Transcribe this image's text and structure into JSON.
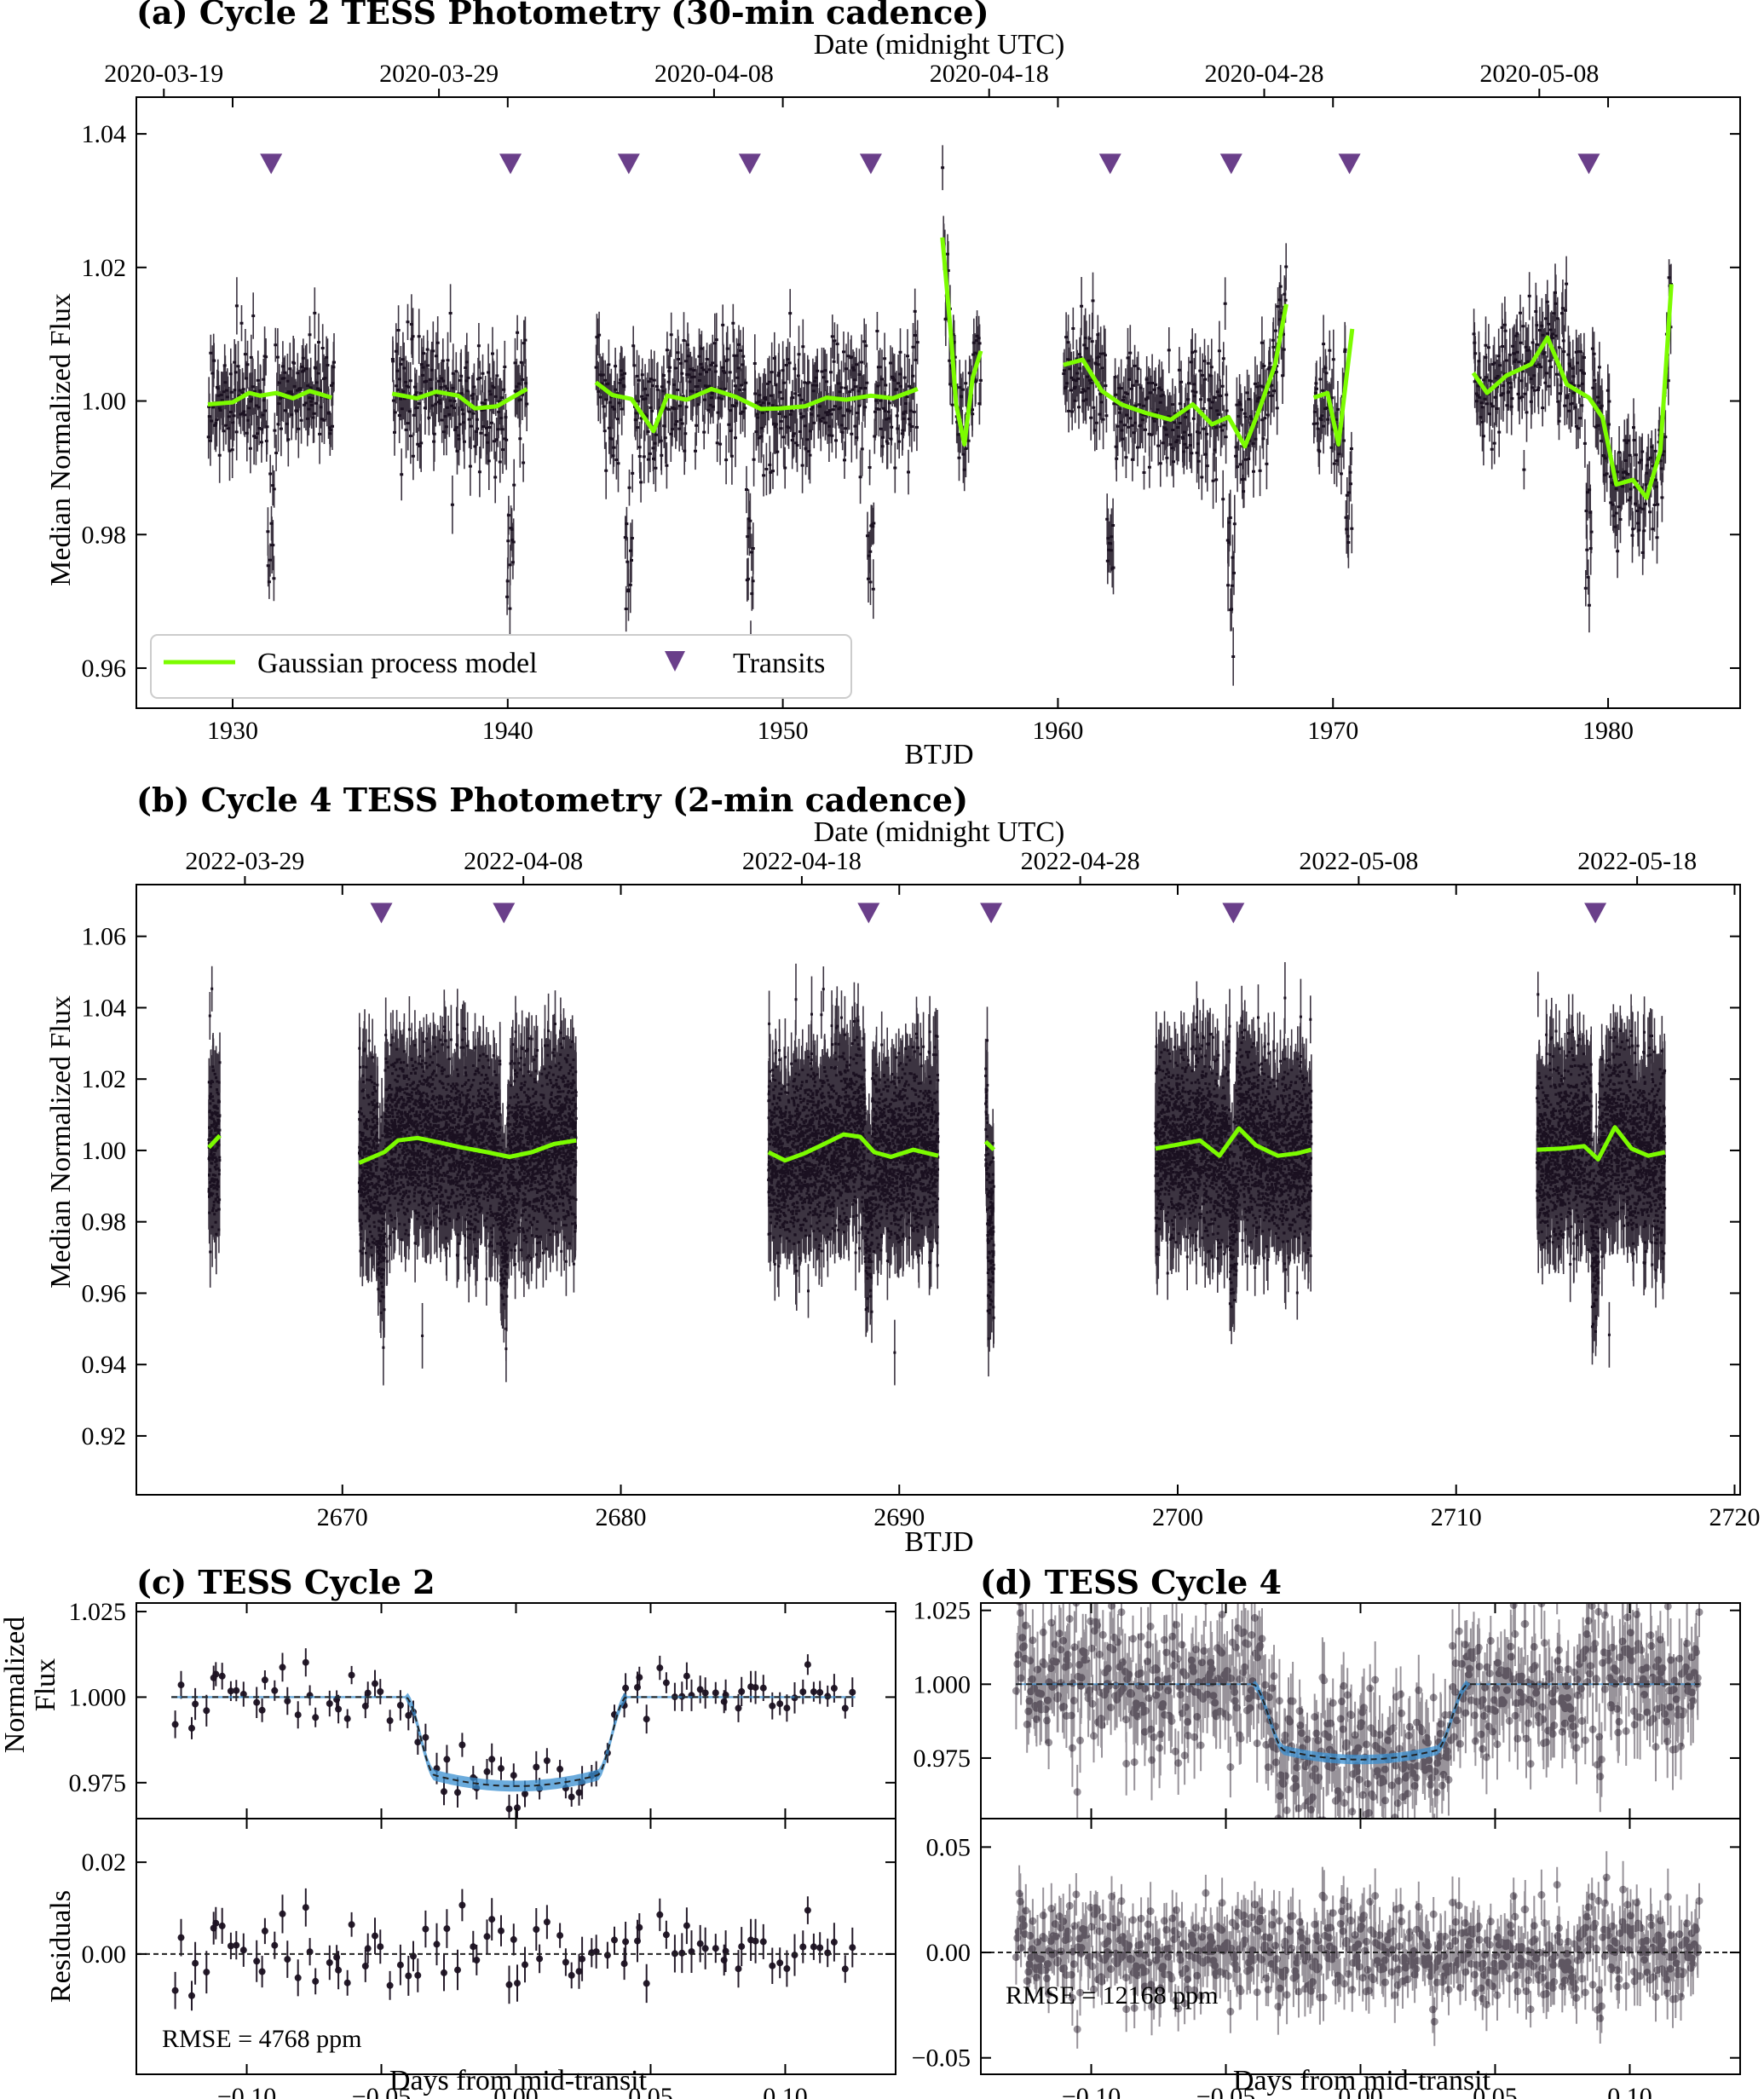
{
  "chart_data": [
    {
      "id": "a",
      "type": "scatter",
      "title": "(a) Cycle 2 TESS Photometry (30-min cadence)",
      "xlabel": "BTJD",
      "ylabel": "Median Normalized Flux",
      "top_xlabel": "Date (midnight UTC)",
      "xlim": [
        1926.5,
        1984.8
      ],
      "ylim": [
        0.954,
        1.0455
      ],
      "xticks": [
        1930,
        1940,
        1950,
        1960,
        1970,
        1980
      ],
      "xtick_labels": [
        "1930",
        "1940",
        "1950",
        "1960",
        "1970",
        "1980"
      ],
      "yticks": [
        0.96,
        0.98,
        1.0,
        1.02,
        1.04
      ],
      "ytick_labels": [
        "0.96",
        "0.98",
        "1.00",
        "1.02",
        "1.04"
      ],
      "top_ticks": [
        1927.5,
        1937.5,
        1947.5,
        1957.5,
        1967.5,
        1977.5
      ],
      "top_tick_labels": [
        "2020-03-19",
        "2020-03-29",
        "2020-04-08",
        "2020-04-18",
        "2020-04-28",
        "2020-05-08"
      ],
      "segments": [
        [
          1929.1,
          1933.7
        ],
        [
          1935.8,
          1940.7
        ],
        [
          1943.2,
          1954.9
        ],
        [
          1955.8,
          1957.2
        ],
        [
          1960.2,
          1968.3
        ],
        [
          1969.3,
          1970.7
        ],
        [
          1975.1,
          1982.3
        ]
      ],
      "noise": 0.0045,
      "transits": [
        1931.4,
        1940.1,
        1944.4,
        1948.8,
        1953.2,
        1961.9,
        1966.3,
        1970.6,
        1979.3
      ],
      "transit_marker_y": 1.0355,
      "gp_model": [
        [
          1929.1,
          0.9995
        ],
        [
          1930.0,
          0.9998
        ],
        [
          1930.6,
          1.0012
        ],
        [
          1931.0,
          1.0008
        ],
        [
          1931.6,
          1.0012
        ],
        [
          1932.2,
          1.0004
        ],
        [
          1932.8,
          1.0015
        ],
        [
          1933.6,
          1.0005
        ],
        [
          1935.8,
          1.0011
        ],
        [
          1936.7,
          1.0004
        ],
        [
          1937.4,
          1.0014
        ],
        [
          1938.2,
          1.0008
        ],
        [
          1938.8,
          0.9989
        ],
        [
          1939.6,
          0.9992
        ],
        [
          1940.7,
          1.0018
        ],
        [
          1943.2,
          1.0028
        ],
        [
          1943.8,
          1.0009
        ],
        [
          1944.5,
          1.0003
        ],
        [
          1945.3,
          0.9955
        ],
        [
          1945.8,
          1.0008
        ],
        [
          1946.5,
          1.0002
        ],
        [
          1947.4,
          1.0018
        ],
        [
          1948.3,
          1.0006
        ],
        [
          1949.2,
          0.9988
        ],
        [
          1949.9,
          0.9989
        ],
        [
          1950.8,
          0.9992
        ],
        [
          1951.6,
          1.0005
        ],
        [
          1952.3,
          1.0002
        ],
        [
          1953.2,
          1.0008
        ],
        [
          1954.0,
          1.0004
        ],
        [
          1954.9,
          1.0018
        ],
        [
          1955.8,
          1.0245
        ],
        [
          1956.1,
          1.0105
        ],
        [
          1956.3,
          0.9995
        ],
        [
          1956.6,
          0.9935
        ],
        [
          1956.9,
          1.0035
        ],
        [
          1957.2,
          1.0075
        ],
        [
          1960.2,
          1.0054
        ],
        [
          1960.9,
          1.0062
        ],
        [
          1961.6,
          1.0015
        ],
        [
          1962.3,
          0.9995
        ],
        [
          1963.2,
          0.9982
        ],
        [
          1964.1,
          0.9972
        ],
        [
          1964.9,
          0.9995
        ],
        [
          1965.6,
          0.9965
        ],
        [
          1966.2,
          0.9976
        ],
        [
          1966.8,
          0.9932
        ],
        [
          1967.3,
          0.9985
        ],
        [
          1967.9,
          1.0055
        ],
        [
          1968.3,
          1.0145
        ],
        [
          1969.3,
          1.0005
        ],
        [
          1969.8,
          1.0012
        ],
        [
          1970.2,
          0.9935
        ],
        [
          1970.7,
          1.0108
        ],
        [
          1975.1,
          1.0042
        ],
        [
          1975.6,
          1.0012
        ],
        [
          1976.3,
          1.0038
        ],
        [
          1977.2,
          1.0055
        ],
        [
          1977.8,
          1.0095
        ],
        [
          1978.5,
          1.0025
        ],
        [
          1979.3,
          1.0005
        ],
        [
          1979.8,
          0.9975
        ],
        [
          1980.3,
          0.9875
        ],
        [
          1980.9,
          0.9882
        ],
        [
          1981.4,
          0.9855
        ],
        [
          1981.9,
          0.9925
        ],
        [
          1982.3,
          1.0175
        ]
      ]
    },
    {
      "id": "b",
      "type": "scatter",
      "title": "(b) Cycle 4 TESS Photometry (2-min cadence)",
      "xlabel": "BTJD",
      "ylabel": "Median Normalized Flux",
      "top_xlabel": "Date (midnight UTC)",
      "xlim": [
        2662.6,
        2720.2
      ],
      "ylim": [
        0.9035,
        1.0745
      ],
      "xticks": [
        2670,
        2680,
        2690,
        2700,
        2710,
        2720
      ],
      "xtick_labels": [
        "2670",
        "2680",
        "2690",
        "2700",
        "2710",
        "2720"
      ],
      "yticks": [
        0.92,
        0.94,
        0.96,
        0.98,
        1.0,
        1.02,
        1.04,
        1.06
      ],
      "ytick_labels": [
        "0.92",
        "0.94",
        "0.96",
        "0.98",
        "1.00",
        "1.02",
        "1.04",
        "1.06"
      ],
      "top_ticks": [
        2666.5,
        2676.5,
        2686.5,
        2696.5,
        2706.5,
        2716.5
      ],
      "top_tick_labels": [
        "2022-03-29",
        "2022-04-08",
        "2022-04-18",
        "2022-04-28",
        "2022-05-08",
        "2022-05-18"
      ],
      "segments": [
        [
          2665.2,
          2665.6
        ],
        [
          2670.6,
          2678.4
        ],
        [
          2685.3,
          2691.4
        ],
        [
          2693.1,
          2693.4
        ],
        [
          2699.2,
          2704.8
        ],
        [
          2712.9,
          2717.5
        ]
      ],
      "noise": 0.0115,
      "transits": [
        2671.4,
        2675.8,
        2688.9,
        2693.3,
        2702.0,
        2715.0
      ],
      "transit_marker_y": 1.0665,
      "gp_model": [
        [
          2665.2,
          1.0008
        ],
        [
          2665.6,
          1.0042
        ],
        [
          2670.6,
          0.9965
        ],
        [
          2671.5,
          0.9995
        ],
        [
          2672.0,
          1.0028
        ],
        [
          2672.7,
          1.0035
        ],
        [
          2673.5,
          1.0022
        ],
        [
          2674.3,
          1.0008
        ],
        [
          2675.2,
          0.9995
        ],
        [
          2676.0,
          0.9982
        ],
        [
          2676.8,
          0.9995
        ],
        [
          2677.6,
          1.0018
        ],
        [
          2678.4,
          1.0028
        ],
        [
          2685.3,
          0.9995
        ],
        [
          2685.9,
          0.9972
        ],
        [
          2686.6,
          0.9992
        ],
        [
          2687.3,
          1.0018
        ],
        [
          2688.0,
          1.0045
        ],
        [
          2688.6,
          1.0038
        ],
        [
          2689.1,
          0.9995
        ],
        [
          2689.7,
          0.9982
        ],
        [
          2690.5,
          1.0002
        ],
        [
          2691.4,
          0.9985
        ],
        [
          2693.1,
          1.0025
        ],
        [
          2693.4,
          1.0002
        ],
        [
          2699.2,
          1.0005
        ],
        [
          2699.9,
          1.0015
        ],
        [
          2700.8,
          1.0028
        ],
        [
          2701.5,
          0.9985
        ],
        [
          2702.2,
          1.0062
        ],
        [
          2702.8,
          1.0015
        ],
        [
          2703.6,
          0.9985
        ],
        [
          2704.3,
          0.9992
        ],
        [
          2704.8,
          1.0002
        ],
        [
          2712.9,
          1.0002
        ],
        [
          2713.8,
          1.0005
        ],
        [
          2714.6,
          1.0012
        ],
        [
          2715.1,
          0.9975
        ],
        [
          2715.7,
          1.0065
        ],
        [
          2716.3,
          1.0005
        ],
        [
          2716.9,
          0.9985
        ],
        [
          2717.5,
          0.9995
        ]
      ]
    },
    {
      "id": "c",
      "type": "line",
      "title": "(c) TESS Cycle 2",
      "xlabel": "Days from mid-transit",
      "ylabel_line1": "Normalized",
      "ylabel_line2": "Flux",
      "ylabel_resid": "Residuals",
      "xlim": [
        -0.141,
        0.141
      ],
      "ylim_top": [
        0.9645,
        1.0275
      ],
      "ylim_bottom": [
        -0.0262,
        0.0295
      ],
      "xticks": [
        -0.1,
        -0.05,
        0.0,
        0.05,
        0.1
      ],
      "xtick_labels": [
        "−0.10",
        "−0.05",
        "0.00",
        "0.05",
        "0.10"
      ],
      "yticks_top": [
        0.975,
        1.0,
        1.025
      ],
      "ytick_labels_top": [
        "0.975",
        "1.000",
        "1.025"
      ],
      "yticks_bottom": [
        0.0,
        0.02
      ],
      "ytick_labels_bottom": [
        "0.00",
        "0.02"
      ],
      "transit_model": {
        "depth": 0.026,
        "half_duration": 0.041,
        "ingress": 0.011
      },
      "scatter": 0.0046,
      "n_points": 95,
      "error_bar": 0.0038,
      "rmse_text": "RMSE = 4768 ppm"
    },
    {
      "id": "d",
      "type": "line",
      "title": "(d) TESS Cycle 4",
      "xlabel": "Days from mid-transit",
      "ylabel_resid": "",
      "xlim": [
        -0.141,
        0.141
      ],
      "ylim_top": [
        0.9545,
        1.0275
      ],
      "ylim_bottom": [
        -0.0578,
        0.0635
      ],
      "xticks": [
        -0.1,
        -0.05,
        0.0,
        0.05,
        0.1
      ],
      "xtick_labels": [
        "−0.10",
        "−0.05",
        "0.00",
        "0.05",
        "0.10"
      ],
      "yticks_top": [
        0.975,
        1.0,
        1.025
      ],
      "ytick_labels_top": [
        "0.975",
        "1.000",
        "1.025"
      ],
      "yticks_bottom": [
        -0.05,
        0.0,
        0.05
      ],
      "ytick_labels_bottom": [
        "−0.05",
        "0.00",
        "0.05"
      ],
      "transit_model": {
        "depth": 0.0255,
        "half_duration": 0.04,
        "ingress": 0.012
      },
      "scatter": 0.0118,
      "n_points": 700,
      "error_bar": 0.011,
      "rmse_text": "RMSE = 12168 ppm"
    }
  ],
  "legend": {
    "gp_label": "Gaussian process model",
    "transit_label": "Transits"
  },
  "colors": {
    "gp": "#7CFC00",
    "transit_marker": "#6a3f8a",
    "data": "#1a1020",
    "model_band": "#3a8fd0",
    "model_line": "#222222"
  }
}
